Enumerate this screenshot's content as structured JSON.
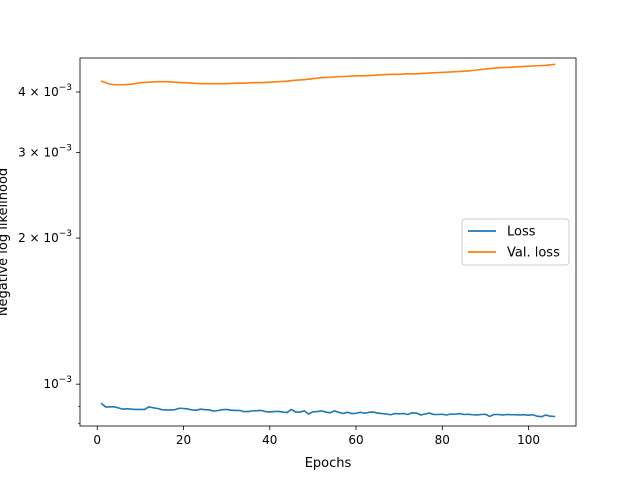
{
  "chart_data": {
    "type": "line",
    "title": "",
    "xlabel": "Epochs",
    "ylabel": "Negative log likelihood",
    "yscale": "log",
    "xlim": [
      -4,
      111
    ],
    "ylim": [
      0.00082,
      0.0047
    ],
    "grid": false,
    "legend_position": "center-right",
    "x_ticks": [
      0,
      20,
      40,
      60,
      80,
      100
    ],
    "x_tick_labels": [
      "0",
      "20",
      "40",
      "60",
      "80",
      "100"
    ],
    "y_ticks": [
      0.001,
      0.002,
      0.003,
      0.004
    ],
    "y_tick_labels": [
      {
        "base": "10",
        "exp": "−3"
      },
      {
        "mant": "2",
        "base": "10",
        "exp": "−3"
      },
      {
        "mant": "3",
        "base": "10",
        "exp": "−3"
      },
      {
        "mant": "4",
        "base": "10",
        "exp": "−3"
      }
    ],
    "series": [
      {
        "name": "Loss",
        "color": "#1f77b4",
        "x": [
          1,
          2,
          3,
          4,
          5,
          6,
          7,
          8,
          9,
          10,
          11,
          12,
          13,
          14,
          15,
          16,
          17,
          18,
          19,
          20,
          21,
          22,
          23,
          24,
          25,
          26,
          27,
          28,
          29,
          30,
          31,
          32,
          33,
          34,
          35,
          36,
          37,
          38,
          39,
          40,
          41,
          42,
          43,
          44,
          45,
          46,
          47,
          48,
          49,
          50,
          51,
          52,
          53,
          54,
          55,
          56,
          57,
          58,
          59,
          60,
          61,
          62,
          63,
          64,
          65,
          66,
          67,
          68,
          69,
          70,
          71,
          72,
          73,
          74,
          75,
          76,
          77,
          78,
          79,
          80,
          81,
          82,
          83,
          84,
          85,
          86,
          87,
          88,
          89,
          90,
          91,
          92,
          93,
          94,
          95,
          96,
          97,
          98,
          99,
          100,
          101,
          102,
          103,
          104,
          105,
          106
        ],
        "y": [
          0.000912,
          0.000897,
          0.000898,
          0.000898,
          0.000893,
          0.000888,
          0.00089,
          0.000888,
          0.000887,
          0.000887,
          0.000887,
          0.000898,
          0.000894,
          0.000891,
          0.000886,
          0.000885,
          0.000885,
          0.000886,
          0.000892,
          0.000891,
          0.000889,
          0.000885,
          0.000884,
          0.000888,
          0.000886,
          0.000885,
          0.00088,
          0.000882,
          0.000886,
          0.000887,
          0.000884,
          0.000883,
          0.000883,
          0.000878,
          0.000878,
          0.000881,
          0.000882,
          0.000883,
          0.000878,
          0.000876,
          0.000878,
          0.000879,
          0.000876,
          0.000874,
          0.000887,
          0.000876,
          0.000876,
          0.000881,
          0.000868,
          0.000877,
          0.000878,
          0.000881,
          0.000876,
          0.000873,
          0.000881,
          0.000875,
          0.00087,
          0.000875,
          0.00087,
          0.000871,
          0.000875,
          0.000871,
          0.000875,
          0.000876,
          0.000872,
          0.00087,
          0.000868,
          0.000865,
          0.00087,
          0.000869,
          0.00087,
          0.000866,
          0.000873,
          0.000872,
          0.000864,
          0.000868,
          0.000872,
          0.000866,
          0.000866,
          0.000867,
          0.000864,
          0.000868,
          0.000867,
          0.00087,
          0.000866,
          0.000867,
          0.000865,
          0.000864,
          0.000866,
          0.000867,
          0.000858,
          0.000866,
          0.000866,
          0.000864,
          0.000866,
          0.000865,
          0.000865,
          0.000864,
          0.000865,
          0.000863,
          0.000865,
          0.000859,
          0.000857,
          0.000864,
          0.000859,
          0.000858
        ]
      },
      {
        "name": "Val. loss",
        "color": "#ff7f0e",
        "x": [
          1,
          2,
          3,
          4,
          5,
          6,
          8,
          10,
          12,
          14,
          16,
          18,
          20,
          22,
          24,
          26,
          28,
          30,
          32,
          34,
          36,
          38,
          40,
          42,
          44,
          46,
          48,
          50,
          52,
          54,
          56,
          58,
          60,
          62,
          64,
          66,
          68,
          70,
          72,
          74,
          76,
          78,
          80,
          82,
          84,
          86,
          88,
          90,
          92,
          94,
          96,
          98,
          100,
          102,
          104,
          106
        ],
        "y": [
          0.00421,
          0.00418,
          0.00415,
          0.00414,
          0.00414,
          0.00414,
          0.00415,
          0.00418,
          0.00419,
          0.0042,
          0.0042,
          0.00419,
          0.00418,
          0.00417,
          0.00416,
          0.00416,
          0.00416,
          0.00416,
          0.00417,
          0.00417,
          0.00418,
          0.00418,
          0.00419,
          0.0042,
          0.00421,
          0.00423,
          0.00424,
          0.00426,
          0.00428,
          0.00429,
          0.0043,
          0.00431,
          0.00432,
          0.00432,
          0.00433,
          0.00434,
          0.00435,
          0.00435,
          0.00436,
          0.00436,
          0.00437,
          0.00438,
          0.00439,
          0.0044,
          0.00441,
          0.00442,
          0.00444,
          0.00446,
          0.00448,
          0.00449,
          0.0045,
          0.00451,
          0.00452,
          0.00453,
          0.00454,
          0.00456
        ]
      }
    ]
  }
}
